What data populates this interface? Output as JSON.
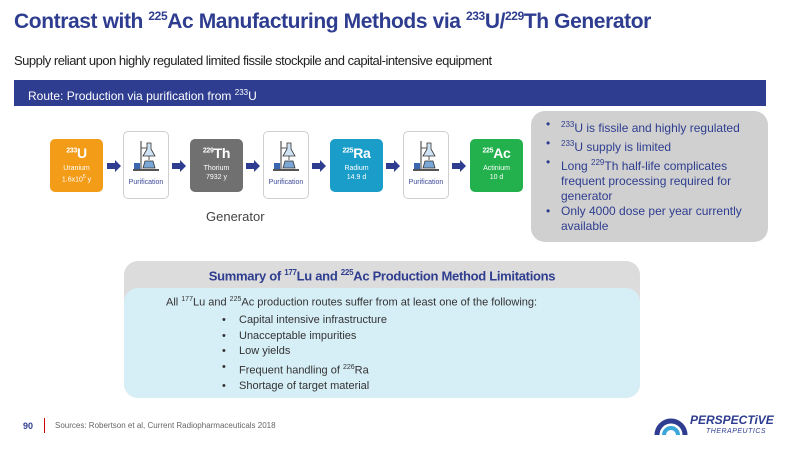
{
  "title": {
    "prefix": "Contrast with ",
    "sup1": "225",
    "mid1": "Ac Manufacturing Methods via ",
    "sup2": "233",
    "mid2": "U/",
    "sup3": "229",
    "suffix": "Th Generator"
  },
  "subtitle": "Supply reliant upon highly regulated limited fissile stockpile and capital-intensive equipment",
  "route": {
    "text": "Route: Production via purification from ",
    "sup": "233",
    "suffix": "U"
  },
  "chain": {
    "isotopes": [
      {
        "mass": "233",
        "symbol": "U",
        "name": "Uranium",
        "halflife_base": "1.6x10",
        "halflife_exp": "5",
        "halflife_unit": " y",
        "color": "#f39c18"
      },
      {
        "mass": "229",
        "symbol": "Th",
        "name": "Thorium",
        "halflife": "7932 y",
        "color": "#707070"
      },
      {
        "mass": "225",
        "symbol": "Ra",
        "name": "Radium",
        "halflife": "14.9 d",
        "color": "#1b9dc9"
      },
      {
        "mass": "225",
        "symbol": "Ac",
        "name": "Actinium",
        "halflife": "10 d",
        "color": "#22b14c"
      }
    ],
    "purification_label": "Purification",
    "generator_label": "Generator"
  },
  "bullets": [
    {
      "sup": "233",
      "text": "U is fissile and highly regulated"
    },
    {
      "sup": "233",
      "text": "U supply is limited"
    },
    {
      "pre": "Long ",
      "sup": "229",
      "text": "Th half-life complicates frequent processing required for generator"
    },
    {
      "text": "Only 4000 dose per year currently available"
    }
  ],
  "summary": {
    "title_prefix": "Summary of ",
    "title_sup1": "177",
    "title_mid": "Lu and ",
    "title_sup2": "225",
    "title_suffix": "Ac Production Method Limitations",
    "intro_prefix": "All ",
    "intro_sup1": "177",
    "intro_mid": "Lu and ",
    "intro_sup2": "225",
    "intro_suffix": "Ac production routes suffer from at least one of the following:",
    "items": [
      {
        "text": "Capital intensive infrastructure"
      },
      {
        "text": "Unacceptable impurities"
      },
      {
        "text": "Low yields"
      },
      {
        "text": "Frequent handling of ",
        "sup": "226",
        "suffix": "Ra"
      },
      {
        "text": "Shortage of target material"
      }
    ]
  },
  "footer": {
    "page_number": "90",
    "source": "Sources: Robertson et al, Current Radiopharmaceuticals 2018"
  },
  "logo": {
    "name": "PERSPECTiVE",
    "sub": "THERAPEUTICS"
  },
  "colors": {
    "primary": "#2e3d8f",
    "accent": "#c00000"
  }
}
